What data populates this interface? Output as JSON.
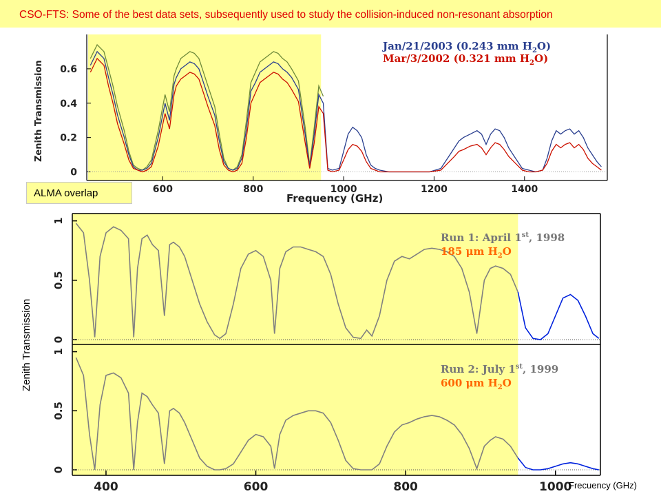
{
  "title": "CSO-FTS: Some of the best data sets, subsequently used to study the collision-induced non-resonant absorption",
  "annotations": {
    "alma_label": "ALMA overlap",
    "bottom_ylabel": "Zenith Transmission",
    "bottom_xlabel": "Frecuency (GHz)"
  },
  "colors": {
    "highlight": "#ffff99",
    "title_text": "#e00000",
    "series_blue": "#2a3f8f",
    "series_red": "#cc1100",
    "series_green": "#6e8a3a",
    "series_gray": "#808080",
    "series_bright_blue": "#0022dd",
    "run_orange": "#ff6600"
  },
  "chart_data": [
    {
      "type": "line",
      "xlabel": "Frequency (GHz)",
      "ylabel": "Zenith Transmission",
      "xlim": [
        435,
        1580
      ],
      "ylim": [
        -0.05,
        0.8
      ],
      "x_ticks": [
        "600",
        "800",
        "1000",
        "1200",
        "1400"
      ],
      "x_tick_values": [
        600,
        800,
        1000,
        1200,
        1400
      ],
      "y_ticks": [
        "0",
        "0.2",
        "0.4",
        "0.6"
      ],
      "y_tick_values": [
        0,
        0.2,
        0.4,
        0.6
      ],
      "highlight_range": [
        435,
        950
      ],
      "legend_placement": "top-right",
      "series": [
        {
          "name": "Jan/21/2003 (0.243 mm H2O)",
          "color": "#2a3f8f",
          "x": [
            440,
            455,
            470,
            480,
            490,
            500,
            515,
            525,
            535,
            545,
            555,
            565,
            575,
            590,
            605,
            615,
            625,
            630,
            640,
            650,
            660,
            670,
            680,
            690,
            700,
            715,
            725,
            735,
            745,
            755,
            765,
            775,
            785,
            795,
            805,
            815,
            825,
            835,
            845,
            855,
            865,
            875,
            885,
            900,
            915,
            925,
            935,
            945,
            955,
            965,
            975,
            990,
            1000,
            1010,
            1020,
            1030,
            1040,
            1050,
            1060,
            1070,
            1080,
            1100,
            1130,
            1160,
            1190,
            1215,
            1230,
            1245,
            1255,
            1265,
            1280,
            1295,
            1305,
            1315,
            1325,
            1335,
            1345,
            1355,
            1365,
            1380,
            1395,
            1410,
            1425,
            1440,
            1450,
            1460,
            1470,
            1480,
            1490,
            1500,
            1510,
            1520,
            1530,
            1540,
            1550,
            1560,
            1570
          ],
          "y": [
            0.62,
            0.7,
            0.66,
            0.55,
            0.45,
            0.33,
            0.2,
            0.1,
            0.03,
            0.01,
            0.01,
            0.02,
            0.05,
            0.2,
            0.4,
            0.3,
            0.51,
            0.55,
            0.6,
            0.62,
            0.64,
            0.63,
            0.6,
            0.52,
            0.44,
            0.33,
            0.18,
            0.06,
            0.02,
            0.01,
            0.02,
            0.08,
            0.25,
            0.47,
            0.52,
            0.58,
            0.6,
            0.62,
            0.64,
            0.63,
            0.6,
            0.58,
            0.55,
            0.48,
            0.22,
            0.03,
            0.22,
            0.45,
            0.4,
            0.02,
            0.01,
            0.02,
            0.12,
            0.22,
            0.26,
            0.24,
            0.2,
            0.1,
            0.04,
            0.02,
            0.01,
            0.0,
            0.0,
            0.0,
            0.0,
            0.02,
            0.08,
            0.14,
            0.18,
            0.2,
            0.22,
            0.24,
            0.22,
            0.16,
            0.22,
            0.25,
            0.24,
            0.2,
            0.14,
            0.08,
            0.02,
            0.01,
            0.0,
            0.01,
            0.08,
            0.18,
            0.24,
            0.22,
            0.24,
            0.25,
            0.22,
            0.24,
            0.2,
            0.14,
            0.1,
            0.06,
            0.03
          ]
        },
        {
          "name": "Mar/3/2002 (0.321 mm H2O)",
          "color": "#cc1100",
          "x": [
            440,
            455,
            470,
            480,
            490,
            500,
            515,
            525,
            535,
            545,
            555,
            565,
            575,
            590,
            605,
            615,
            625,
            630,
            640,
            650,
            660,
            670,
            680,
            690,
            700,
            715,
            725,
            735,
            745,
            755,
            765,
            775,
            785,
            795,
            805,
            815,
            825,
            835,
            845,
            855,
            865,
            875,
            885,
            900,
            915,
            925,
            935,
            945,
            955,
            965,
            975,
            990,
            1000,
            1010,
            1020,
            1030,
            1040,
            1050,
            1060,
            1070,
            1080,
            1100,
            1130,
            1160,
            1190,
            1215,
            1230,
            1245,
            1255,
            1265,
            1280,
            1295,
            1305,
            1315,
            1325,
            1335,
            1345,
            1355,
            1365,
            1380,
            1395,
            1410,
            1425,
            1440,
            1450,
            1460,
            1470,
            1480,
            1490,
            1500,
            1510,
            1520,
            1530,
            1540,
            1550,
            1560,
            1570
          ],
          "y": [
            0.58,
            0.66,
            0.62,
            0.5,
            0.4,
            0.28,
            0.16,
            0.07,
            0.02,
            0.01,
            0.0,
            0.01,
            0.03,
            0.15,
            0.34,
            0.25,
            0.45,
            0.5,
            0.54,
            0.56,
            0.58,
            0.57,
            0.54,
            0.46,
            0.38,
            0.27,
            0.13,
            0.04,
            0.01,
            0.0,
            0.01,
            0.05,
            0.2,
            0.4,
            0.46,
            0.52,
            0.54,
            0.56,
            0.58,
            0.57,
            0.54,
            0.52,
            0.48,
            0.41,
            0.17,
            0.02,
            0.17,
            0.38,
            0.34,
            0.01,
            0.0,
            0.01,
            0.07,
            0.13,
            0.16,
            0.15,
            0.12,
            0.06,
            0.02,
            0.01,
            0.0,
            0.0,
            0.0,
            0.0,
            0.0,
            0.01,
            0.05,
            0.09,
            0.12,
            0.13,
            0.15,
            0.16,
            0.14,
            0.1,
            0.14,
            0.17,
            0.16,
            0.13,
            0.09,
            0.05,
            0.01,
            0.0,
            0.0,
            0.01,
            0.05,
            0.12,
            0.16,
            0.14,
            0.16,
            0.17,
            0.14,
            0.16,
            0.13,
            0.08,
            0.05,
            0.03,
            0.01
          ]
        },
        {
          "name": "",
          "color": "#6e8a3a",
          "x": [
            440,
            455,
            470,
            480,
            490,
            500,
            515,
            525,
            535,
            545,
            555,
            565,
            575,
            590,
            605,
            615,
            625,
            630,
            640,
            650,
            660,
            670,
            680,
            690,
            700,
            715,
            725,
            735,
            745,
            755,
            765,
            775,
            785,
            795,
            805,
            815,
            825,
            835,
            845,
            855,
            865,
            875,
            885,
            900,
            915,
            925,
            935,
            945,
            955
          ],
          "y": [
            0.66,
            0.74,
            0.7,
            0.6,
            0.5,
            0.38,
            0.24,
            0.12,
            0.04,
            0.02,
            0.01,
            0.03,
            0.07,
            0.24,
            0.45,
            0.35,
            0.56,
            0.6,
            0.66,
            0.68,
            0.7,
            0.69,
            0.66,
            0.58,
            0.5,
            0.38,
            0.22,
            0.08,
            0.02,
            0.01,
            0.03,
            0.1,
            0.3,
            0.52,
            0.58,
            0.64,
            0.66,
            0.68,
            0.7,
            0.69,
            0.66,
            0.64,
            0.6,
            0.53,
            0.26,
            0.04,
            0.26,
            0.5,
            0.44
          ]
        }
      ]
    },
    {
      "type": "line",
      "title": "Run 1: April 1st, 1998",
      "subtitle": "185 μm H2O",
      "xlim": [
        355,
        1060
      ],
      "ylim": [
        0,
        1.05
      ],
      "y_ticks": [
        "0",
        "0.5",
        "1"
      ],
      "y_tick_values": [
        0,
        0.5,
        1
      ],
      "highlight_range": [
        355,
        950
      ],
      "series": [
        {
          "color": "#808080",
          "x": [
            360,
            370,
            378,
            385,
            392,
            400,
            410,
            420,
            430,
            437,
            442,
            448,
            455,
            462,
            470,
            478,
            485,
            490,
            498,
            505,
            515,
            525,
            535,
            545,
            552,
            560,
            570,
            580,
            590,
            600,
            610,
            620,
            625,
            632,
            640,
            650,
            660,
            670,
            680,
            690,
            700,
            710,
            720,
            730,
            740,
            748,
            755,
            765,
            775,
            785,
            795,
            805,
            815,
            825,
            835,
            845,
            855,
            865,
            875,
            885,
            895,
            905,
            913,
            920,
            930,
            940,
            950
          ],
          "y": [
            0.98,
            0.9,
            0.5,
            0.02,
            0.7,
            0.9,
            0.95,
            0.92,
            0.85,
            0.02,
            0.6,
            0.85,
            0.88,
            0.8,
            0.75,
            0.2,
            0.8,
            0.82,
            0.78,
            0.7,
            0.5,
            0.3,
            0.15,
            0.04,
            0.01,
            0.05,
            0.3,
            0.6,
            0.72,
            0.75,
            0.7,
            0.5,
            0.05,
            0.6,
            0.74,
            0.78,
            0.78,
            0.76,
            0.74,
            0.7,
            0.55,
            0.3,
            0.1,
            0.02,
            0.01,
            0.08,
            0.03,
            0.2,
            0.5,
            0.66,
            0.7,
            0.68,
            0.72,
            0.76,
            0.77,
            0.76,
            0.74,
            0.7,
            0.6,
            0.4,
            0.05,
            0.5,
            0.6,
            0.62,
            0.6,
            0.55,
            0.4
          ]
        },
        {
          "color": "#0022dd",
          "x": [
            950,
            960,
            970,
            980,
            990,
            1000,
            1010,
            1020,
            1030,
            1040,
            1050,
            1058
          ],
          "y": [
            0.4,
            0.1,
            0.01,
            0.0,
            0.05,
            0.2,
            0.35,
            0.38,
            0.33,
            0.2,
            0.05,
            0.01
          ]
        }
      ]
    },
    {
      "type": "line",
      "title": "Run 2: July 1st, 1999",
      "subtitle": "600 μm H2O",
      "xlabel": "Frecuency (GHz)",
      "ylabel": "Zenith Transmission",
      "xlim": [
        355,
        1060
      ],
      "ylim": [
        0,
        1.05
      ],
      "x_ticks": [
        "400",
        "600",
        "800",
        "1000"
      ],
      "x_tick_values": [
        400,
        600,
        800,
        1000
      ],
      "y_ticks": [
        "0",
        "0.5",
        "1"
      ],
      "y_tick_values": [
        0,
        0.5,
        1
      ],
      "highlight_range": [
        355,
        950
      ],
      "series": [
        {
          "color": "#808080",
          "x": [
            360,
            370,
            378,
            385,
            392,
            400,
            410,
            420,
            430,
            437,
            442,
            448,
            455,
            462,
            470,
            478,
            485,
            490,
            498,
            505,
            515,
            525,
            535,
            545,
            552,
            560,
            570,
            580,
            590,
            600,
            610,
            620,
            625,
            632,
            640,
            650,
            660,
            670,
            680,
            690,
            700,
            710,
            720,
            730,
            740,
            748,
            755,
            765,
            775,
            785,
            795,
            805,
            815,
            825,
            835,
            845,
            855,
            865,
            875,
            885,
            895,
            905,
            913,
            920,
            930,
            940,
            950
          ],
          "y": [
            0.95,
            0.8,
            0.3,
            0.0,
            0.55,
            0.8,
            0.82,
            0.78,
            0.65,
            0.0,
            0.4,
            0.65,
            0.62,
            0.55,
            0.48,
            0.05,
            0.5,
            0.52,
            0.48,
            0.4,
            0.25,
            0.1,
            0.03,
            0.0,
            0.0,
            0.01,
            0.05,
            0.15,
            0.25,
            0.3,
            0.28,
            0.2,
            0.01,
            0.3,
            0.42,
            0.46,
            0.48,
            0.5,
            0.5,
            0.48,
            0.4,
            0.25,
            0.08,
            0.01,
            0.0,
            0.0,
            0.0,
            0.05,
            0.2,
            0.32,
            0.38,
            0.4,
            0.43,
            0.45,
            0.46,
            0.45,
            0.42,
            0.38,
            0.3,
            0.18,
            0.01,
            0.2,
            0.25,
            0.28,
            0.26,
            0.2,
            0.1
          ]
        },
        {
          "color": "#0022dd",
          "x": [
            950,
            960,
            970,
            980,
            990,
            1000,
            1010,
            1020,
            1030,
            1040,
            1050,
            1058
          ],
          "y": [
            0.1,
            0.02,
            0.0,
            0.0,
            0.01,
            0.03,
            0.05,
            0.06,
            0.05,
            0.03,
            0.01,
            0.0
          ]
        }
      ]
    }
  ],
  "panels_text": {
    "top_legend_1": "Jan/21/2003 (0.243 mm H",
    "top_legend_1_sub": "2",
    "top_legend_1_end": "O)",
    "top_legend_2": "Mar/3/2002 (0.321 mm H",
    "top_legend_2_sub": "2",
    "top_legend_2_end": "O)",
    "top_ylabel": "Zenith Transmission",
    "top_xlabel": "Frequency (GHz)",
    "run1_title": "Run 1: April 1",
    "run1_sup": "st",
    "run1_year": ", 1998",
    "run1_water": "185 μm H",
    "run1_water_sub": "2",
    "run1_water_end": "O",
    "run2_title": "Run 2: July 1",
    "run2_sup": "st",
    "run2_year": ", 1999",
    "run2_water": "600 μm H",
    "run2_water_sub": "2",
    "run2_water_end": "O"
  }
}
